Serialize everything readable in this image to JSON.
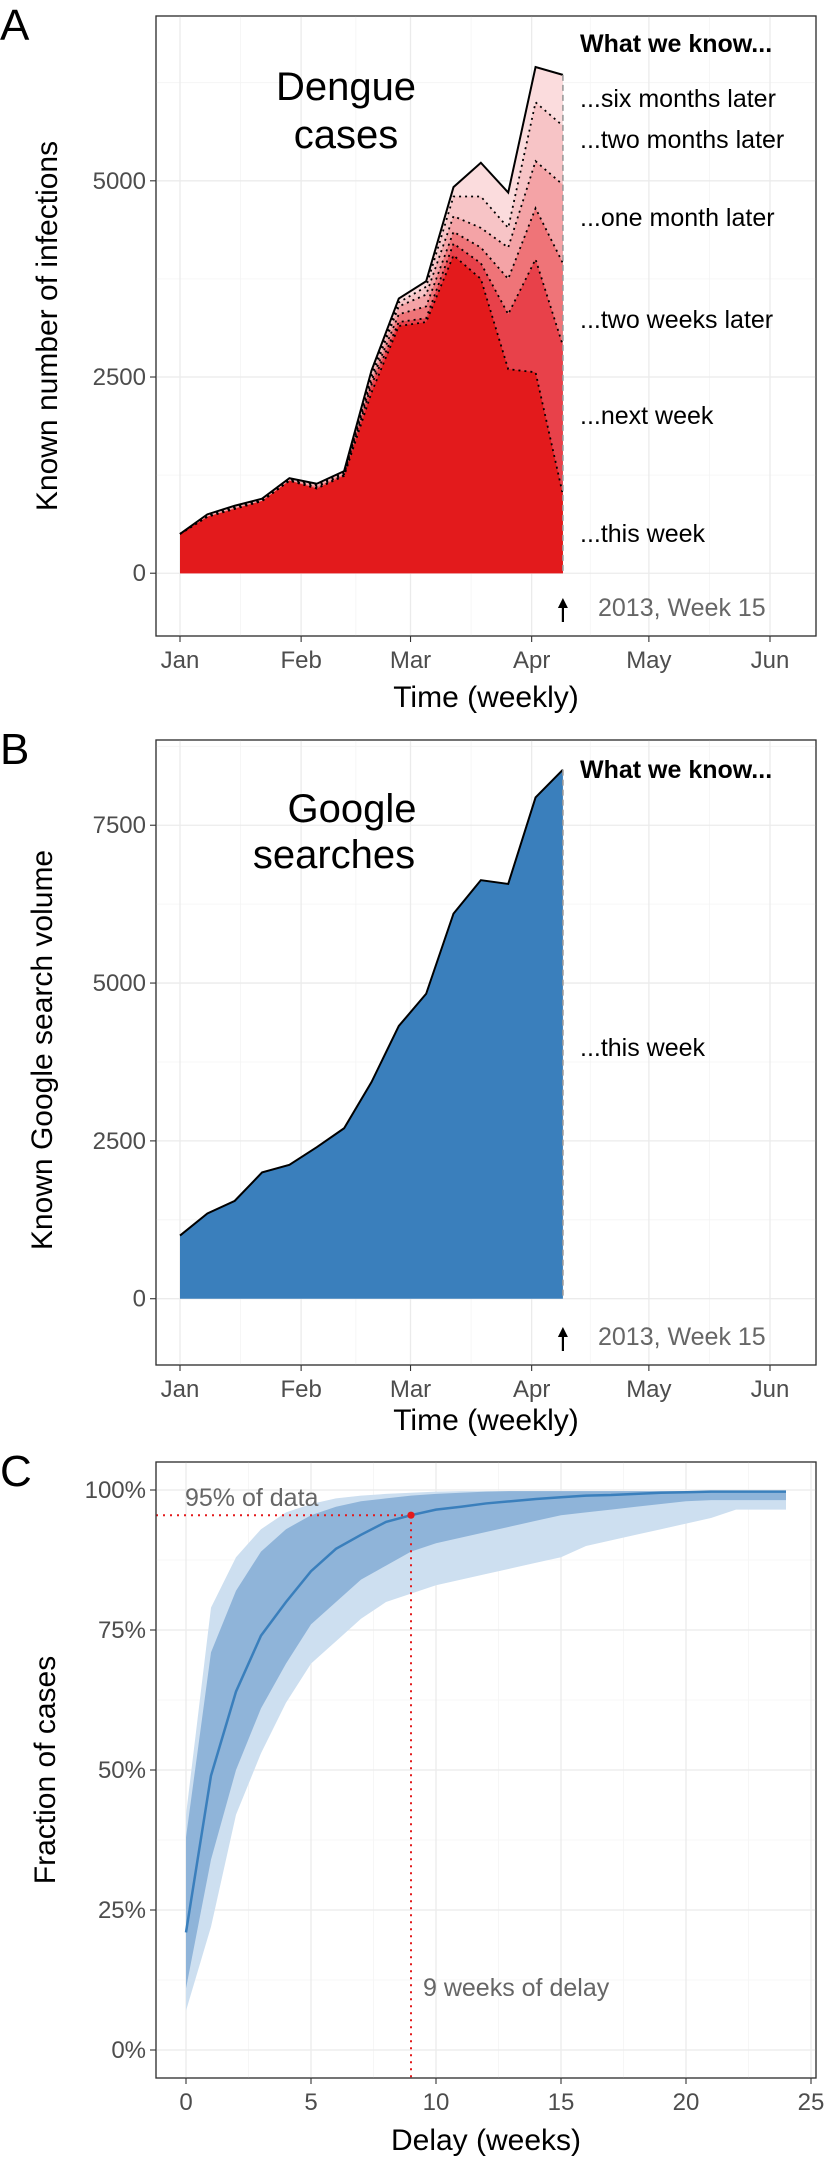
{
  "chart_data": [
    {
      "panel": "A",
      "type": "area",
      "title": "Dengue\ncases",
      "xlabel": "Time (weekly)",
      "ylabel": "Known number of infections",
      "x_ticks": [
        "Jan",
        "Feb",
        "Mar",
        "Apr",
        "May",
        "Jun"
      ],
      "y_ticks": [
        0,
        2500,
        5000
      ],
      "ylim": [
        -800,
        7100
      ],
      "grid": true,
      "x": [
        "2013-01-01",
        "2013-01-08",
        "2013-01-15",
        "2013-01-22",
        "2013-01-29",
        "2013-02-05",
        "2013-02-12",
        "2013-02-19",
        "2013-02-26",
        "2013-03-05",
        "2013-03-12",
        "2013-03-19",
        "2013-03-26",
        "2013-04-02",
        "2013-04-09"
      ],
      "header": "What we know...",
      "series": [
        {
          "name": "...this week",
          "color": "#e31a1c",
          "values": [
            500,
            720,
            820,
            920,
            1180,
            1080,
            1240,
            2300,
            3150,
            3200,
            4050,
            3750,
            2600,
            2560,
            1000
          ]
        },
        {
          "name": "...next week",
          "color": "#e8414a",
          "values": [
            500,
            720,
            820,
            920,
            1180,
            1080,
            1250,
            2400,
            3200,
            3250,
            4200,
            3950,
            3300,
            4000,
            2900
          ]
        },
        {
          "name": "...two weeks later",
          "color": "#ef7478",
          "values": [
            500,
            720,
            830,
            925,
            1180,
            1100,
            1260,
            2450,
            3300,
            3400,
            4350,
            4150,
            3750,
            4650,
            3950
          ]
        },
        {
          "name": "...one month later",
          "color": "#f4a3a6",
          "values": [
            500,
            730,
            840,
            930,
            1190,
            1120,
            1280,
            2500,
            3400,
            3550,
            4550,
            4400,
            4150,
            5250,
            4950
          ]
        },
        {
          "name": "...two months later",
          "color": "#f7c4c6",
          "values": [
            500,
            740,
            850,
            940,
            1200,
            1130,
            1290,
            2550,
            3450,
            3650,
            4800,
            4800,
            4400,
            6000,
            5700
          ]
        },
        {
          "name": "...six months later",
          "color": "#fbdcdd",
          "values": [
            500,
            750,
            860,
            950,
            1210,
            1140,
            1300,
            2580,
            3500,
            3720,
            4920,
            5230,
            4850,
            6450,
            6350
          ]
        }
      ],
      "now_label": "2013, Week 15"
    },
    {
      "panel": "B",
      "type": "area",
      "title": "Google\nsearches",
      "xlabel": "Time (weekly)",
      "ylabel": "Known Google search volume",
      "x_ticks": [
        "Jan",
        "Feb",
        "Mar",
        "Apr",
        "May",
        "Jun"
      ],
      "y_ticks": [
        0,
        2500,
        5000,
        7500
      ],
      "ylim": [
        -1050,
        8850
      ],
      "grid": true,
      "x": [
        "2013-01-01",
        "2013-01-08",
        "2013-01-15",
        "2013-01-22",
        "2013-01-29",
        "2013-02-05",
        "2013-02-12",
        "2013-02-19",
        "2013-02-26",
        "2013-03-05",
        "2013-03-12",
        "2013-03-19",
        "2013-03-26",
        "2013-04-02",
        "2013-04-09"
      ],
      "header": "What we know...",
      "series": [
        {
          "name": "...this week",
          "color": "#3a7fbc",
          "values": [
            1000,
            1350,
            1550,
            2000,
            2120,
            2400,
            2700,
            3430,
            4320,
            4830,
            6100,
            6630,
            6570,
            7940,
            8380
          ]
        }
      ],
      "now_label": "2013, Week 15"
    },
    {
      "panel": "C",
      "type": "line",
      "xlabel": "Delay (weeks)",
      "ylabel": "Fraction of cases",
      "x_ticks": [
        0,
        5,
        10,
        15,
        20,
        25
      ],
      "y_ticks": [
        "0%",
        "25%",
        "50%",
        "75%",
        "100%"
      ],
      "xlim": [
        -1.2,
        25.2
      ],
      "ylim": [
        -0.05,
        1.05
      ],
      "grid": true,
      "x": [
        0,
        1,
        2,
        3,
        4,
        5,
        6,
        7,
        8,
        9,
        10,
        11,
        12,
        13,
        14,
        15,
        16,
        17,
        18,
        19,
        20,
        21,
        22,
        23,
        24
      ],
      "median": [
        0.21,
        0.49,
        0.64,
        0.74,
        0.8,
        0.855,
        0.895,
        0.92,
        0.943,
        0.955,
        0.965,
        0.97,
        0.976,
        0.98,
        0.984,
        0.987,
        0.99,
        0.991,
        0.993,
        0.995,
        0.996,
        0.997,
        0.997,
        0.997,
        0.997
      ],
      "inner_band": {
        "lower": [
          0.11,
          0.34,
          0.5,
          0.61,
          0.69,
          0.76,
          0.8,
          0.84,
          0.865,
          0.89,
          0.905,
          0.915,
          0.925,
          0.935,
          0.945,
          0.955,
          0.96,
          0.965,
          0.97,
          0.975,
          0.98,
          0.982,
          0.982,
          0.982,
          0.982
        ],
        "upper": [
          0.38,
          0.71,
          0.82,
          0.89,
          0.93,
          0.955,
          0.97,
          0.98,
          0.985,
          0.99,
          0.993,
          0.995,
          0.997,
          0.998,
          0.998,
          0.998,
          0.998,
          0.998,
          0.998,
          0.998,
          0.998,
          0.998,
          0.998,
          0.998,
          0.998
        ]
      },
      "outer_band": {
        "lower": [
          0.07,
          0.22,
          0.42,
          0.53,
          0.62,
          0.69,
          0.73,
          0.77,
          0.8,
          0.815,
          0.83,
          0.84,
          0.85,
          0.86,
          0.87,
          0.88,
          0.9,
          0.91,
          0.92,
          0.93,
          0.94,
          0.95,
          0.965,
          0.965,
          0.965
        ],
        "upper": [
          0.42,
          0.79,
          0.88,
          0.93,
          0.96,
          0.975,
          0.985,
          0.99,
          0.993,
          0.995,
          0.997,
          0.998,
          0.998,
          0.998,
          0.998,
          0.998,
          0.998,
          0.998,
          0.998,
          0.998,
          0.998,
          0.998,
          0.998,
          0.998,
          0.998
        ]
      },
      "colors": {
        "line": "#3a7fbc",
        "inner": "#8fb4d9",
        "outer": "#cddff0",
        "marker": "#e31a1c"
      },
      "marker": {
        "x": 9,
        "y": 0.955
      },
      "annotations": {
        "y_text": "95% of data",
        "x_text": "9 weeks of delay"
      }
    }
  ]
}
